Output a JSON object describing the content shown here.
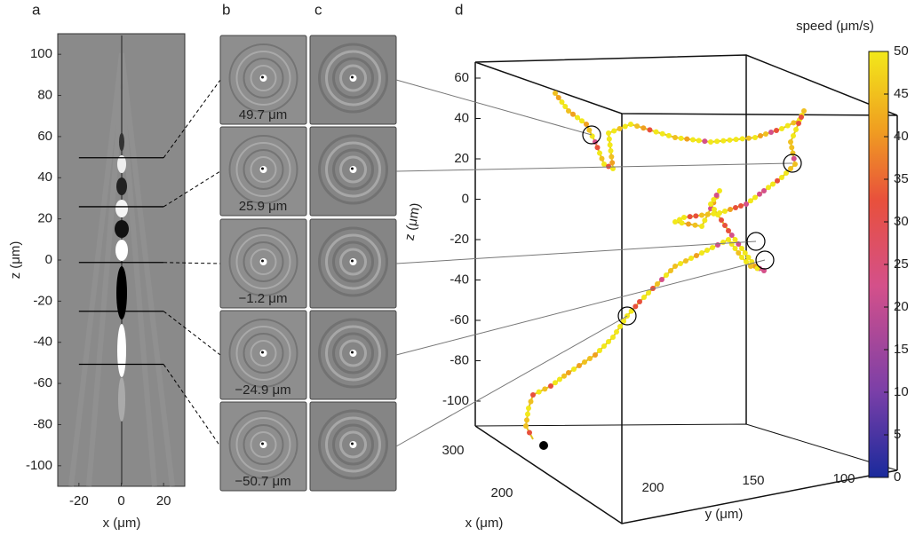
{
  "panel_a": {
    "label": "a",
    "xlabel": "x (μm)",
    "ylabel": "z (μm)",
    "xlim": [
      -30,
      30
    ],
    "ylim": [
      -110,
      110
    ],
    "xticks": [
      -20,
      0,
      20
    ],
    "yticks": [
      100,
      80,
      60,
      40,
      20,
      0,
      -20,
      -40,
      -60,
      -80,
      -100
    ],
    "slices": [
      49.7,
      25.9,
      -1.2,
      -24.9,
      -50.7
    ]
  },
  "panel_b": {
    "label": "b",
    "depth_labels": [
      "49.7  μm",
      "25.9  μm",
      "−1.2  μm",
      "−24.9  μm",
      "−50.7  μm"
    ]
  },
  "panel_c": {
    "label": "c"
  },
  "panel_d": {
    "label": "d",
    "xlabel": "x (μm)",
    "ylabel": "y (μm)",
    "zlabel": "z (μm)",
    "zlim": [
      -100,
      60
    ],
    "zticks": [
      60,
      40,
      20,
      0,
      -20,
      -40,
      -60,
      -80,
      -100
    ],
    "xticks": [
      300,
      200
    ],
    "yticks": [
      200,
      150,
      100
    ],
    "colorbar": {
      "label": "speed  (μm/s)",
      "lim": [
        0,
        50
      ],
      "ticks": [
        50,
        45,
        40,
        35,
        30,
        25,
        20,
        15,
        10,
        5,
        0
      ]
    }
  }
}
